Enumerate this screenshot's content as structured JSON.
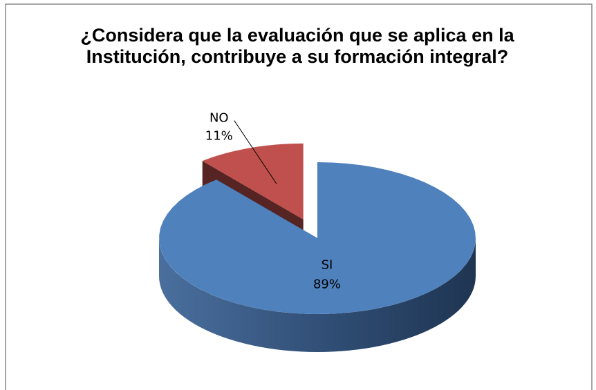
{
  "chart_data": {
    "type": "pie",
    "title": "¿Considera que la evaluación que se aplica en la Institución, contribuye a su formación integral?",
    "categories": [
      "SI",
      "NO"
    ],
    "values": [
      89,
      11
    ],
    "value_labels": [
      "89%",
      "11%"
    ],
    "colors": [
      "#4f81bd",
      "#c0504d"
    ]
  }
}
